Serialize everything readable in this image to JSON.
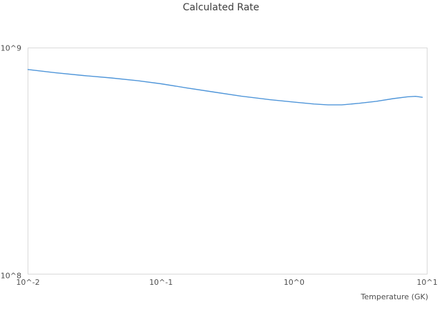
{
  "chart_data": {
    "type": "line",
    "title": "Calculated Rate",
    "xlabel": "Temperature (GK)",
    "ylabel": "",
    "x_scale": "log",
    "y_scale": "log",
    "xlim": [
      0.01,
      10
    ],
    "ylim": [
      100000000.0,
      1000000000.0
    ],
    "grid": false,
    "legend_position": "none",
    "x_ticks": [
      {
        "value": 0.01,
        "label": "10^-2"
      },
      {
        "value": 0.1,
        "label": "10^-1"
      },
      {
        "value": 1,
        "label": "10^0"
      },
      {
        "value": 10,
        "label": "10^1"
      }
    ],
    "y_ticks": [
      {
        "value": 100000000.0,
        "label": "10^8"
      },
      {
        "value": 1000000000.0,
        "label": "10^9"
      }
    ],
    "series": [
      {
        "name": "Calculated Rate",
        "color": "#4e95d9",
        "x": [
          0.01,
          0.0124,
          0.016,
          0.026,
          0.042,
          0.067,
          0.1,
          0.155,
          0.25,
          0.4,
          0.65,
          1.0,
          1.41,
          1.8,
          2.28,
          3.07,
          4.15,
          5.57,
          7.08,
          8.17,
          9.2
        ],
        "y": [
          803000000.0,
          791000000.0,
          777000000.0,
          755000000.0,
          737000000.0,
          716000000.0,
          694000000.0,
          666000000.0,
          638000000.0,
          612000000.0,
          591000000.0,
          576000000.0,
          565000000.0,
          560000000.0,
          560000000.0,
          569000000.0,
          581000000.0,
          597000000.0,
          608000000.0,
          611000000.0,
          605000000.0
        ]
      }
    ]
  },
  "colors": {
    "line": "#4e95d9",
    "plot_border": "#d9d9d9",
    "title_text": "#3d3d3d",
    "tick_text": "#4d4d4d",
    "background": "#ffffff"
  }
}
